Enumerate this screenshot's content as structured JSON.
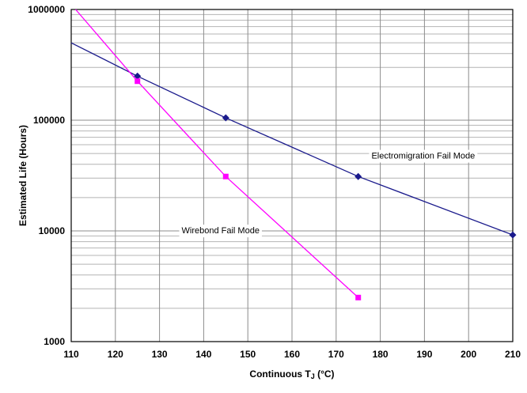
{
  "chart_data": {
    "type": "line",
    "title": "",
    "ylabel": "Estimated Life (Hours)",
    "xlabel_parts": {
      "main": "Continuous T",
      "sub": "J",
      "unit": " (°C)"
    },
    "xlim": [
      110,
      210
    ],
    "ylim": [
      1000,
      1000000
    ],
    "y_scale": "log",
    "grid": true,
    "x_ticks": [
      110,
      120,
      130,
      140,
      150,
      160,
      170,
      180,
      190,
      200,
      210
    ],
    "y_ticks": [
      1000,
      10000,
      100000,
      1000000
    ],
    "colors": {
      "minor_grid": "#b4b4b4",
      "major_grid": "#8c8c8c",
      "border": "#000000"
    },
    "series": [
      {
        "name": "Electromigration Fail Mode",
        "color": "#1a1a8c",
        "marker": "diamond",
        "line": [
          [
            110,
            500000
          ],
          [
            125,
            250000
          ],
          [
            145,
            105000
          ],
          [
            175,
            31000
          ],
          [
            210,
            9200
          ]
        ],
        "points": [
          [
            125,
            250000
          ],
          [
            145,
            105000
          ],
          [
            175,
            31000
          ],
          [
            210,
            9200
          ]
        ],
        "label_pos": [
          178,
          45000
        ]
      },
      {
        "name": "Wirebond Fail Mode",
        "color": "#ff00ff",
        "marker": "square",
        "line": [
          [
            111,
            1000000
          ],
          [
            125,
            225000
          ],
          [
            145,
            31000
          ],
          [
            175,
            2500
          ]
        ],
        "points": [
          [
            125,
            225000
          ],
          [
            145,
            31000
          ],
          [
            175,
            2500
          ]
        ],
        "label_pos": [
          135,
          9500
        ]
      }
    ]
  }
}
